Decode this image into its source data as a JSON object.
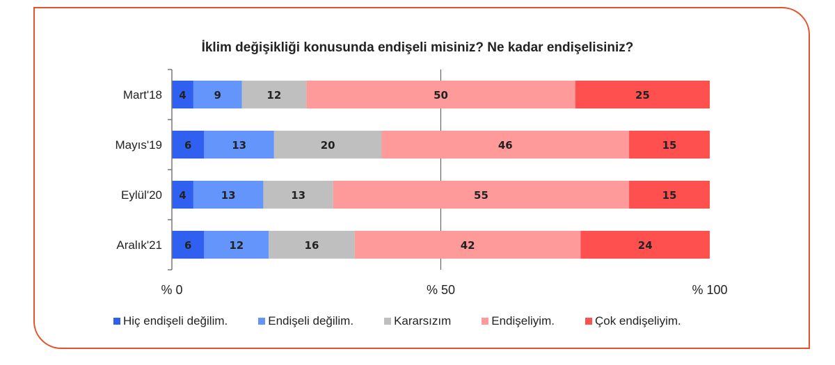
{
  "chart_data": {
    "type": "bar",
    "orientation": "horizontal",
    "stacked": true,
    "title": "İklim değişikliği konusunda endişeli misiniz? Ne kadar endişelisiniz?",
    "categories": [
      "Mart'18",
      "Mayıs'19",
      "Eylül'20",
      "Aralık'21"
    ],
    "series": [
      {
        "name": "Hiç endişeli değilim.",
        "color": "#2f60f0",
        "values": [
          4,
          6,
          4,
          6
        ]
      },
      {
        "name": "Endişeli değilim.",
        "color": "#6395fa",
        "values": [
          9,
          13,
          13,
          12
        ]
      },
      {
        "name": "Kararsızım",
        "color": "#bfbfbf",
        "values": [
          12,
          20,
          13,
          16
        ]
      },
      {
        "name": "Endişeliyim.",
        "color": "#ff9a9a",
        "values": [
          50,
          46,
          55,
          42
        ]
      },
      {
        "name": "Çok endişeliyim.",
        "color": "#ff5050",
        "values": [
          25,
          15,
          15,
          24
        ]
      }
    ],
    "xlim": [
      0,
      100
    ],
    "xticks": [
      0,
      50,
      100
    ],
    "xtick_labels": [
      "% 0",
      "% 50",
      "% 100"
    ],
    "grid": "vertical at 50",
    "data_labels": true,
    "legend": "bottom"
  },
  "frame_color": "#e8502a"
}
